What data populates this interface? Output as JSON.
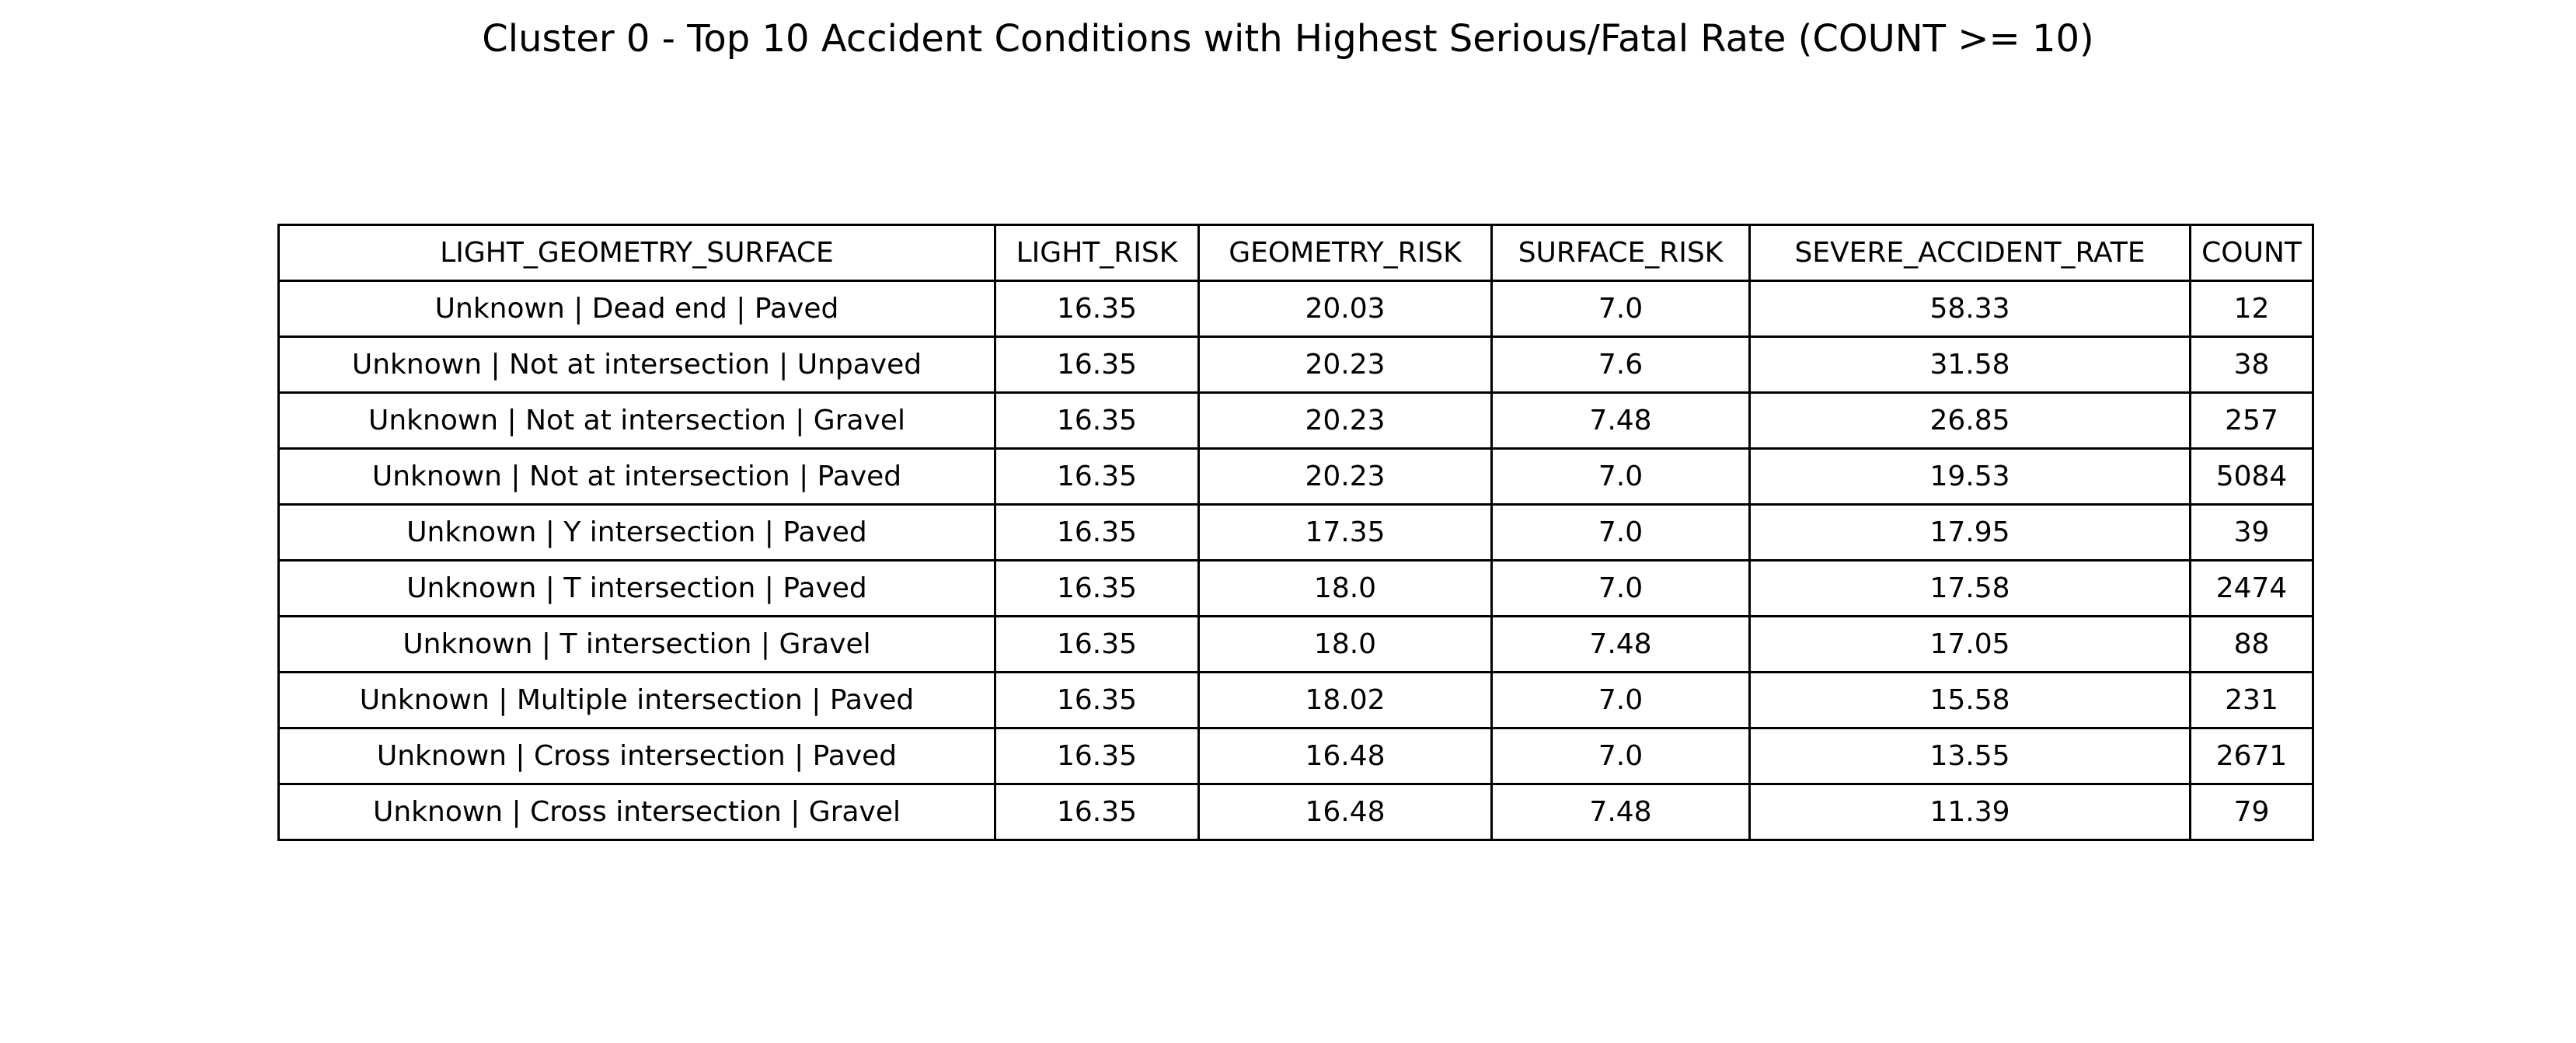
{
  "chart_data": {
    "type": "table",
    "title": "Cluster 0 - Top 10 Accident Conditions with Highest Serious/Fatal Rate (COUNT >= 10)",
    "columns": [
      "LIGHT_GEOMETRY_SURFACE",
      "LIGHT_RISK",
      "GEOMETRY_RISK",
      "SURFACE_RISK",
      "SEVERE_ACCIDENT_RATE",
      "COUNT"
    ],
    "rows": [
      [
        "Unknown | Dead end | Paved",
        "16.35",
        "20.03",
        "7.0",
        "58.33",
        "12"
      ],
      [
        "Unknown | Not at intersection | Unpaved",
        "16.35",
        "20.23",
        "7.6",
        "31.58",
        "38"
      ],
      [
        "Unknown | Not at intersection | Gravel",
        "16.35",
        "20.23",
        "7.48",
        "26.85",
        "257"
      ],
      [
        "Unknown | Not at intersection | Paved",
        "16.35",
        "20.23",
        "7.0",
        "19.53",
        "5084"
      ],
      [
        "Unknown | Y intersection | Paved",
        "16.35",
        "17.35",
        "7.0",
        "17.95",
        "39"
      ],
      [
        "Unknown | T intersection | Paved",
        "16.35",
        "18.0",
        "7.0",
        "17.58",
        "2474"
      ],
      [
        "Unknown | T intersection | Gravel",
        "16.35",
        "18.0",
        "7.48",
        "17.05",
        "88"
      ],
      [
        "Unknown | Multiple intersection | Paved",
        "16.35",
        "18.02",
        "7.0",
        "15.58",
        "231"
      ],
      [
        "Unknown | Cross intersection | Paved",
        "16.35",
        "16.48",
        "7.0",
        "13.55",
        "2671"
      ],
      [
        "Unknown | Cross intersection | Gravel",
        "16.35",
        "16.48",
        "7.48",
        "11.39",
        "79"
      ]
    ]
  }
}
